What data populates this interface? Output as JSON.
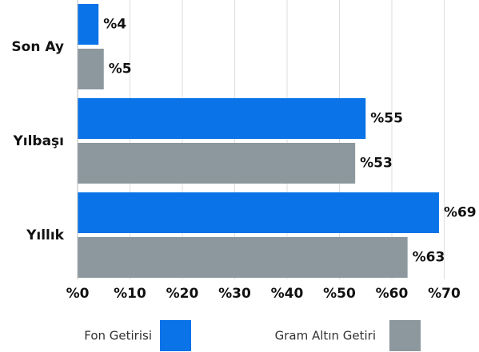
{
  "chart_data": {
    "type": "bar",
    "orientation": "horizontal",
    "categories": [
      "Son Ay",
      "Yılbaşı",
      "Yıllık"
    ],
    "series": [
      {
        "name": "Fon Getirisi",
        "color": "#0a73e8",
        "values": [
          4,
          55,
          69
        ],
        "value_labels": [
          "%4",
          "%55",
          "%69"
        ]
      },
      {
        "name": "Gram Altın Getiri",
        "color": "#8c979e",
        "values": [
          5,
          53,
          63
        ],
        "value_labels": [
          "%5",
          "%53",
          "%63"
        ]
      }
    ],
    "xlim": [
      0,
      70
    ],
    "xticks": [
      {
        "value": 0,
        "label": "%0"
      },
      {
        "value": 10,
        "label": "%10"
      },
      {
        "value": 20,
        "label": "%20"
      },
      {
        "value": 30,
        "label": "%30"
      },
      {
        "value": 40,
        "label": "%40"
      },
      {
        "value": 50,
        "label": "%50"
      },
      {
        "value": 60,
        "label": "%60"
      },
      {
        "value": 70,
        "label": "%70"
      }
    ],
    "grid": true,
    "legend": "bottom"
  }
}
